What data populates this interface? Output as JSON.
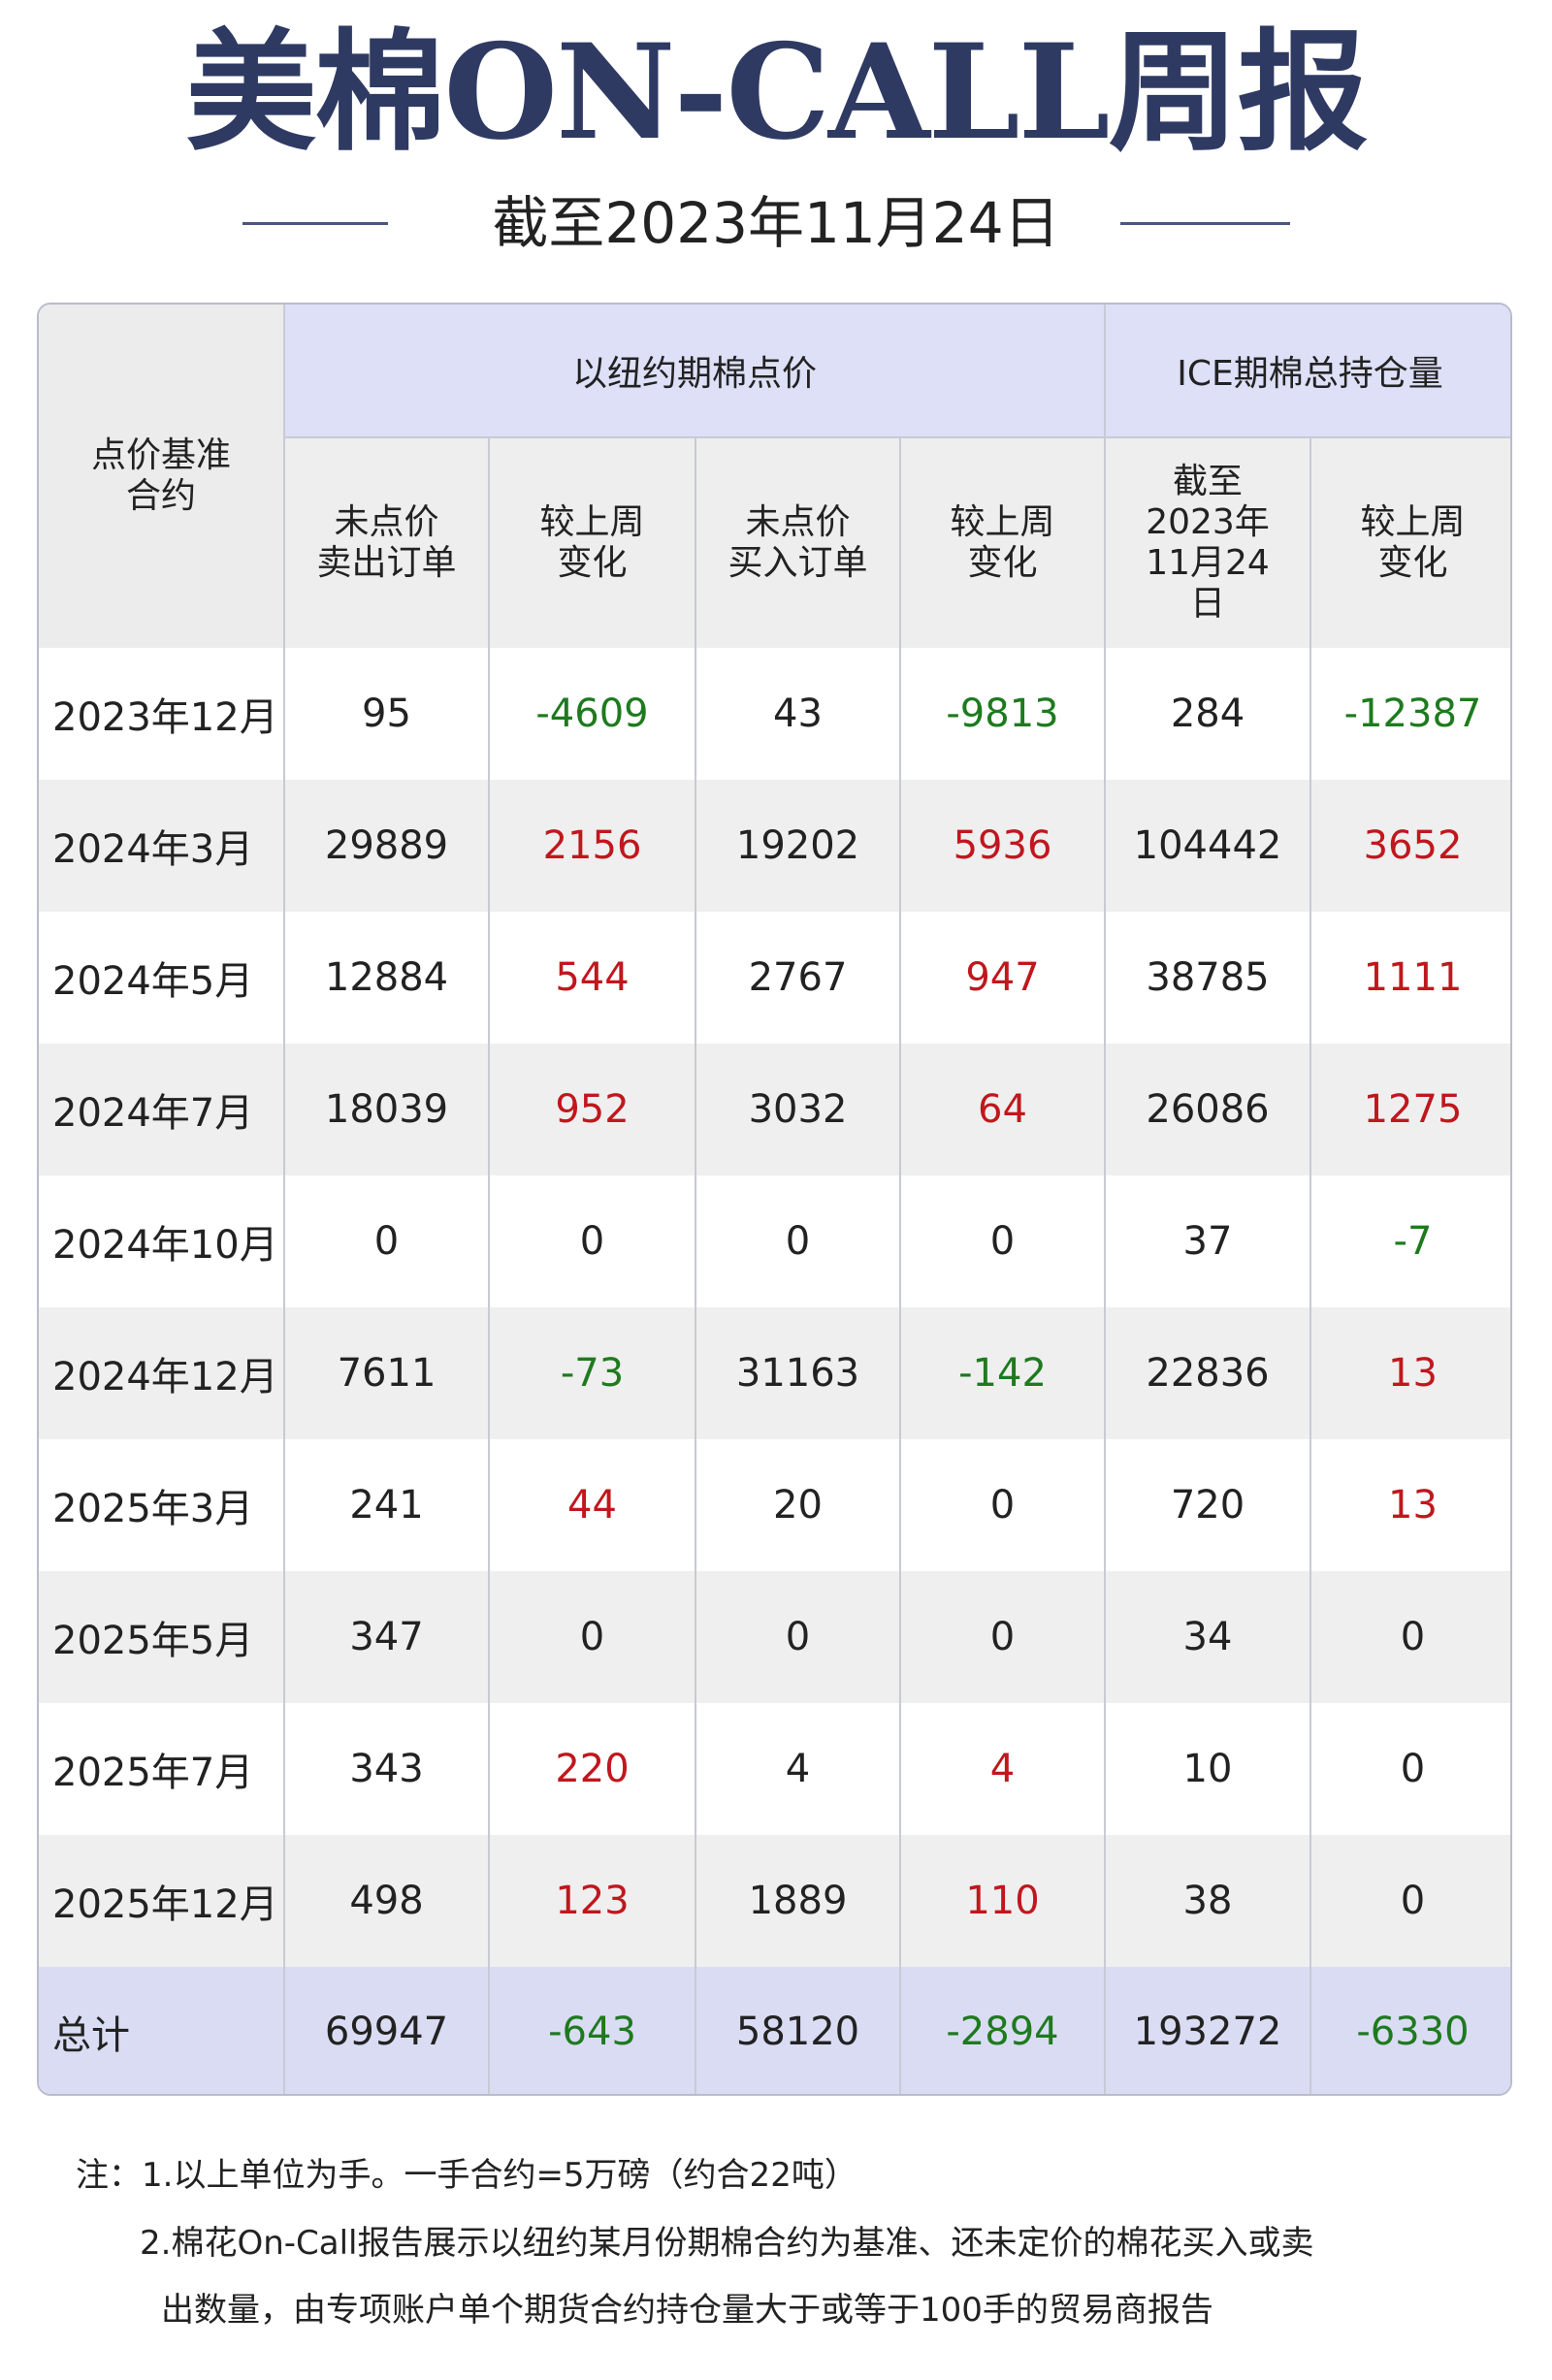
{
  "header": {
    "title": "美棉ON-CALL周报",
    "date": "截至2023年11月24日"
  },
  "table": {
    "corner": "点价基准\n合约",
    "groups": [
      "以纽约期棉点价",
      "ICE期棉总持仓量"
    ],
    "columns": [
      "未点价\n卖出订单",
      "较上周\n变化",
      "未点价\n买入订单",
      "较上周\n变化",
      "截至\n2023年\n11月24\n日",
      "较上周\n变化"
    ],
    "rows": [
      [
        "2023年12月",
        95,
        -4609,
        43,
        -9813,
        284,
        -12387
      ],
      [
        "2024年3月",
        29889,
        2156,
        19202,
        5936,
        104442,
        3652
      ],
      [
        "2024年5月",
        12884,
        544,
        2767,
        947,
        38785,
        1111
      ],
      [
        "2024年7月",
        18039,
        952,
        3032,
        64,
        26086,
        1275
      ],
      [
        "2024年10月",
        0,
        0,
        0,
        0,
        37,
        -7
      ],
      [
        "2024年12月",
        7611,
        -73,
        31163,
        -142,
        22836,
        13
      ],
      [
        "2025年3月",
        241,
        44,
        20,
        0,
        720,
        13
      ],
      [
        "2025年5月",
        347,
        0,
        0,
        0,
        34,
        0
      ],
      [
        "2025年7月",
        343,
        220,
        4,
        4,
        10,
        0
      ],
      [
        "2025年12月",
        498,
        123,
        1889,
        110,
        38,
        0
      ],
      [
        "总计",
        69947,
        -643,
        58120,
        -2894,
        193272,
        -6330
      ]
    ]
  },
  "notes": [
    "注：1.以上单位为手。一手合约=5万磅（约合22吨）",
    "2.棉花On-Call报告展示以纽约某月份期棉合约为基准、还未定价的棉花买入或卖",
    "出数量，由专项账户单个期货合约持仓量大于或等于100手的贸易商报告"
  ]
}
